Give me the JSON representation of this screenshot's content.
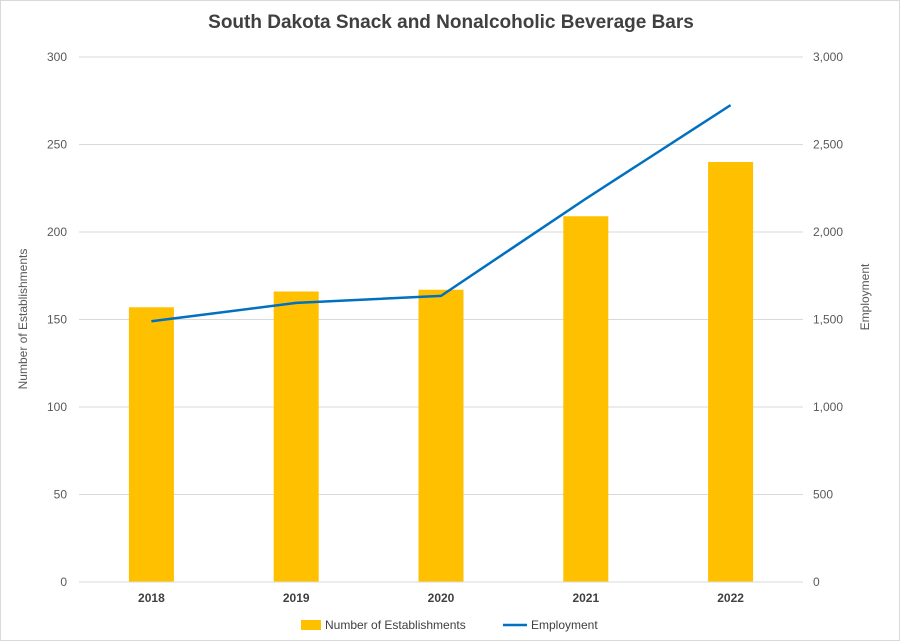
{
  "chart_data": {
    "type": "bar",
    "title": "South Dakota Snack and Nonalcoholic Beverage Bars",
    "categories": [
      "2018",
      "2019",
      "2020",
      "2021",
      "2022"
    ],
    "series": [
      {
        "name": "Number of Establishments",
        "type": "bar",
        "axis": "left",
        "color": "#FFC000",
        "values": [
          157,
          166,
          167,
          209,
          240
        ]
      },
      {
        "name": "Employment",
        "type": "line",
        "axis": "right",
        "color": "#0070C0",
        "values": [
          1490,
          1595,
          1635,
          2190,
          2725
        ]
      }
    ],
    "ylabel": "Number of Establishments",
    "ylim": [
      0,
      300
    ],
    "yticks": [
      "0",
      "50",
      "100",
      "150",
      "200",
      "250",
      "300"
    ],
    "y2label": "Employment",
    "y2lim": [
      0,
      3000
    ],
    "y2ticks": [
      "0",
      "500",
      "1,000",
      "1,500",
      "2,000",
      "2,500",
      "3,000"
    ],
    "grid": true,
    "legend": "bottom"
  }
}
